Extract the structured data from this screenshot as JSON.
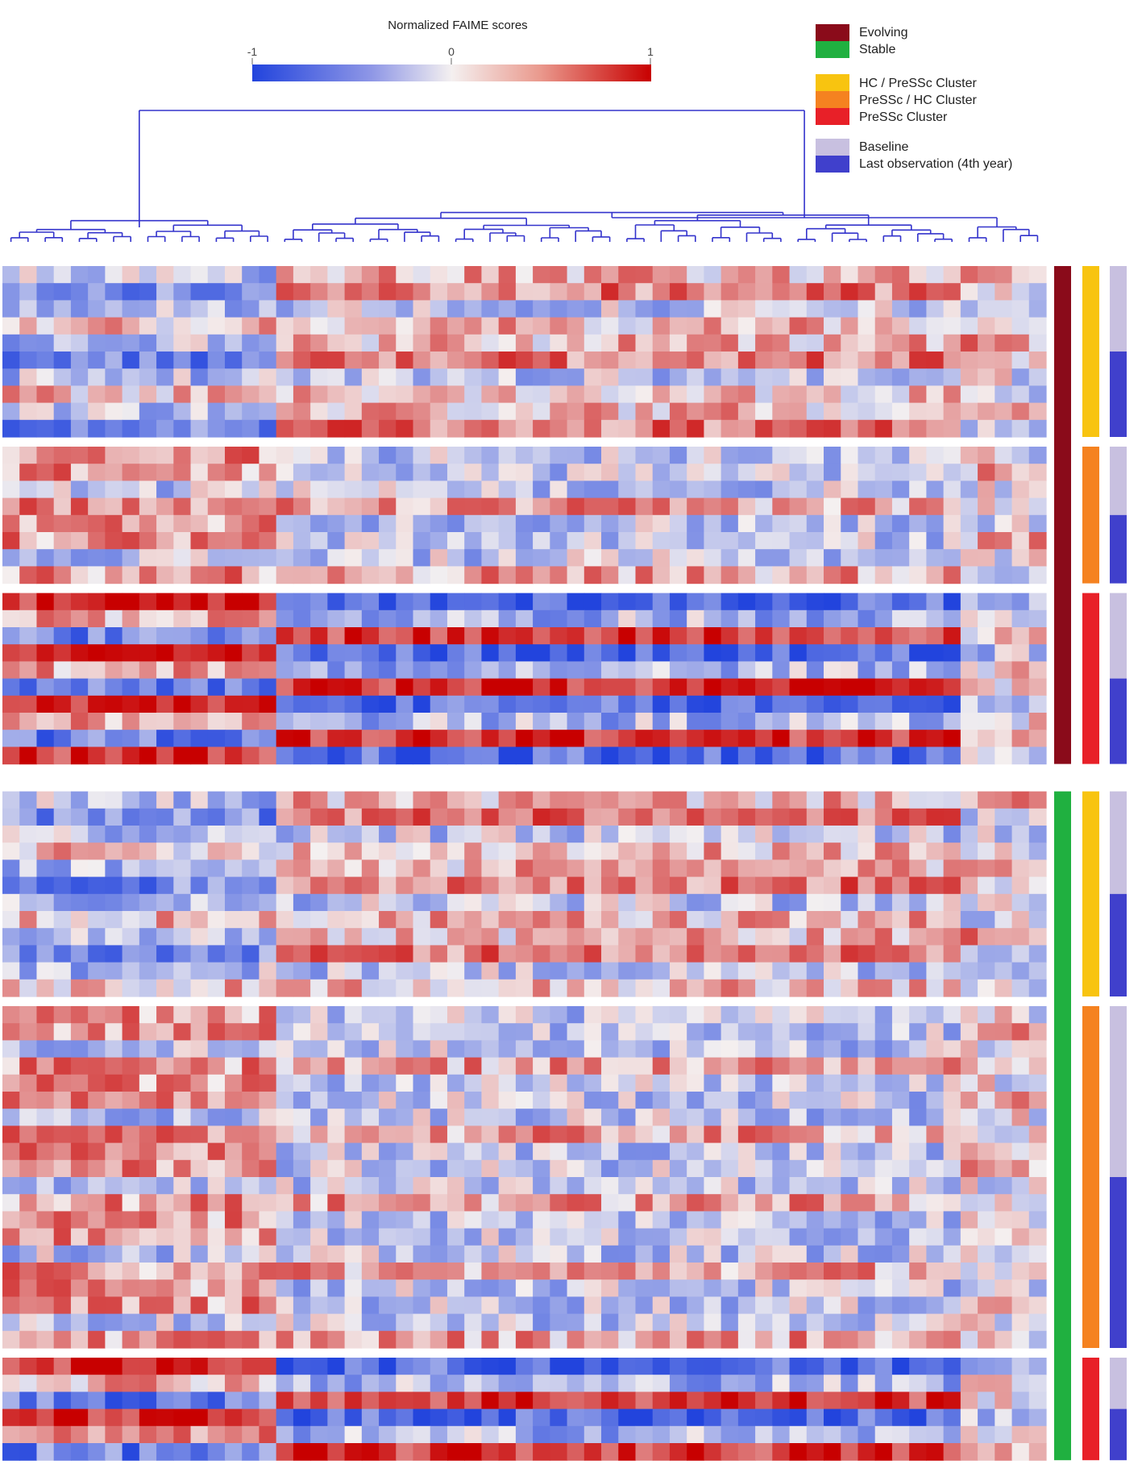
{
  "chart_data": {
    "type": "heatmap",
    "title": "Normalized FAIME scores",
    "colorbar": {
      "min": -1,
      "max": 1,
      "ticks": [
        "-1",
        "0",
        "1"
      ],
      "low_color": "#2244dd",
      "mid_color": "#f4f0f0",
      "high_color": "#c80000"
    },
    "n_columns": 61,
    "column_clusters": {
      "left_group": 16,
      "middle_group": 40,
      "right_group": 5
    },
    "row_blocks": [
      {
        "group": "Evolving",
        "cluster": "HC / PreSSc Cluster",
        "rows": 10,
        "baseline_rows": 5,
        "pattern": "mixed-left-blue"
      },
      {
        "group": "Evolving",
        "cluster": "PreSSc / HC Cluster",
        "rows": 8,
        "baseline_rows": 4,
        "pattern": "left-red"
      },
      {
        "group": "Evolving",
        "cluster": "PreSSc Cluster",
        "rows": 10,
        "baseline_rows": 5,
        "pattern": "strong-contrast"
      },
      {
        "group": "Stable",
        "cluster": "HC / PreSSc Cluster",
        "rows": 12,
        "baseline_rows": 6,
        "pattern": "mixed-left-blue"
      },
      {
        "group": "Stable",
        "cluster": "PreSSc / HC Cluster",
        "rows": 20,
        "baseline_rows": 10,
        "pattern": "left-red"
      },
      {
        "group": "Stable",
        "cluster": "PreSSc Cluster",
        "rows": 6,
        "baseline_rows": 3,
        "pattern": "strong-contrast"
      }
    ],
    "legend": [
      {
        "label": "Evolving",
        "color": "#8a0b1a",
        "type": "group"
      },
      {
        "label": "Stable",
        "color": "#20b040",
        "type": "group"
      },
      {
        "label": "HC / PreSSc Cluster",
        "color": "#f8c410",
        "type": "cluster"
      },
      {
        "label": "PreSSc / HC Cluster",
        "color": "#f58220",
        "type": "cluster"
      },
      {
        "label": "PreSSc Cluster",
        "color": "#e82028",
        "type": "cluster"
      },
      {
        "label": "Baseline",
        "color": "#c8c0e0",
        "type": "timepoint"
      },
      {
        "label": "Last observation (4th year)",
        "color": "#4040cc",
        "type": "timepoint"
      }
    ],
    "group_colors": {
      "Evolving": "#8a0b1a",
      "Stable": "#20b040"
    },
    "cluster_colors": {
      "HC / PreSSc Cluster": "#f8c410",
      "PreSSc / HC Cluster": "#f58220",
      "PreSSc Cluster": "#e82028"
    },
    "timepoint_colors": {
      "Baseline": "#c8c0e0",
      "Last": "#4040cc"
    },
    "dendrogram_color": "#3333cc",
    "legend_placement": "top-right",
    "grid": false
  }
}
